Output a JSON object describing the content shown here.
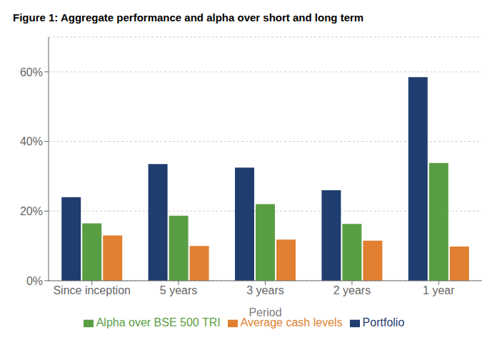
{
  "chart_data": {
    "type": "bar",
    "title": "Figure 1:  Aggregate performance and alpha over short and long term",
    "xlabel": "Period",
    "categories": [
      "Since inception",
      "5 years",
      "3 years",
      "2 years",
      "1 year"
    ],
    "series": [
      {
        "name": "Portfolio",
        "color": "#1f3d6e",
        "values": [
          0.24,
          0.335,
          0.325,
          0.26,
          0.585
        ]
      },
      {
        "name": "Alpha over BSE 500 TRI",
        "color": "#5a9e44",
        "values": [
          0.165,
          0.187,
          0.22,
          0.163,
          0.338
        ]
      },
      {
        "name": "Average cash levels",
        "color": "#e08030",
        "values": [
          0.13,
          0.1,
          0.118,
          0.115,
          0.098
        ]
      }
    ],
    "ylim": [
      0,
      0.7
    ],
    "yticks": [
      {
        "value": 0,
        "label": "0%"
      },
      {
        "value": 0.2,
        "label": "20%"
      },
      {
        "value": 0.4,
        "label": "40%"
      },
      {
        "value": 0.6,
        "label": "60%"
      }
    ],
    "grid": true,
    "legend": "bottom"
  }
}
